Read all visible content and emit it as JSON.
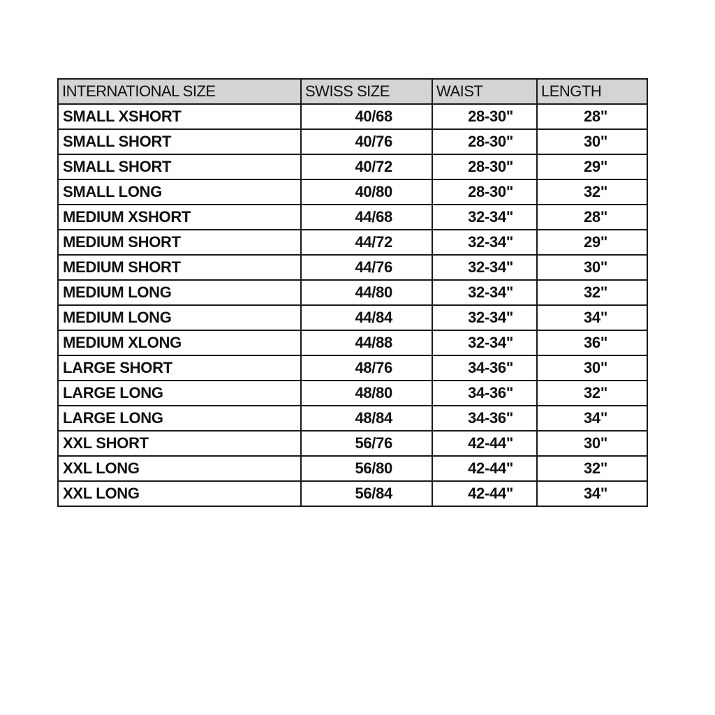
{
  "table": {
    "headers": [
      "INTERNATIONAL SIZE",
      "SWISS SIZE",
      "WAIST",
      "LENGTH"
    ],
    "rows": [
      [
        "SMALL XSHORT",
        "40/68",
        "28-30\"",
        "28\""
      ],
      [
        "SMALL SHORT",
        "40/76",
        "28-30\"",
        "30\""
      ],
      [
        "SMALL SHORT",
        "40/72",
        "28-30\"",
        "29\""
      ],
      [
        "SMALL LONG",
        "40/80",
        "28-30\"",
        "32\""
      ],
      [
        "MEDIUM XSHORT",
        "44/68",
        "32-34\"",
        "28\""
      ],
      [
        "MEDIUM SHORT",
        "44/72",
        "32-34\"",
        "29\""
      ],
      [
        "MEDIUM SHORT",
        "44/76",
        "32-34\"",
        "30\""
      ],
      [
        "MEDIUM LONG",
        "44/80",
        "32-34\"",
        "32\""
      ],
      [
        "MEDIUM LONG",
        "44/84",
        "32-34\"",
        "34\""
      ],
      [
        "MEDIUM XLONG",
        "44/88",
        "32-34\"",
        "36\""
      ],
      [
        "LARGE SHORT",
        "48/76",
        "34-36\"",
        "30\""
      ],
      [
        "LARGE LONG",
        "48/80",
        "34-36\"",
        "32\""
      ],
      [
        "LARGE LONG",
        "48/84",
        "34-36\"",
        "34\""
      ],
      [
        "XXL SHORT",
        "56/76",
        "42-44\"",
        "30\""
      ],
      [
        "XXL LONG",
        "56/80",
        "42-44\"",
        "32\""
      ],
      [
        "XXL LONG",
        "56/84",
        "42-44\"",
        "34\""
      ]
    ]
  },
  "colors": {
    "header_bg": "#d4d4d4",
    "border": "#1a1a1a"
  }
}
